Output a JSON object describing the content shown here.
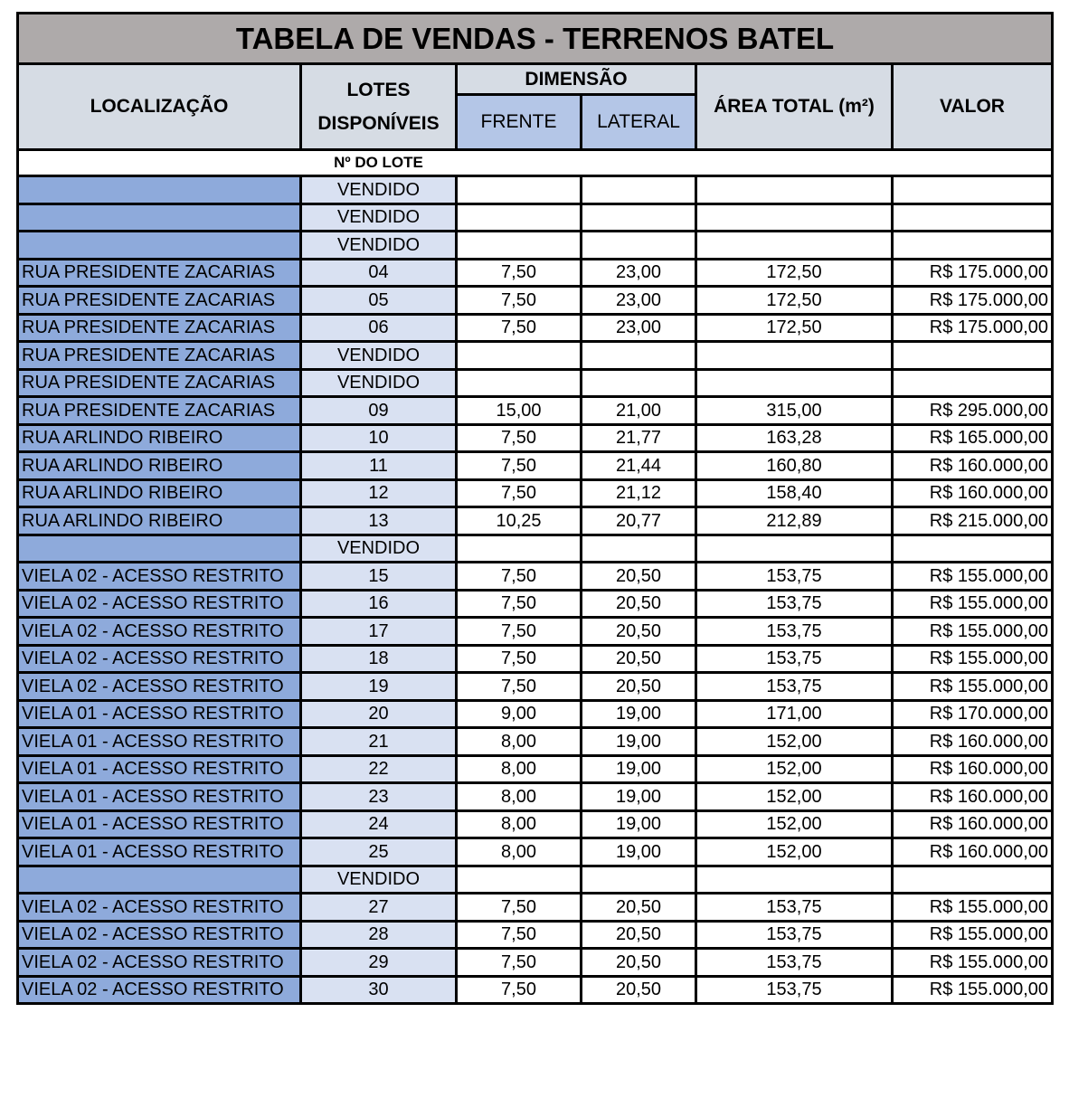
{
  "title": "TABELA DE VENDAS - TERRENOS BATEL",
  "headers": {
    "localizacao": "LOCALIZAÇÃO",
    "lotes": "LOTES DISPONÍVEIS",
    "dimensao": "DIMENSÃO",
    "frente": "FRENTE",
    "lateral": "LATERAL",
    "area": "ÁREA TOTAL (m²)",
    "valor": "VALOR"
  },
  "lote_label": "Nº DO LOTE",
  "colors": {
    "title_bg": "#aeaaaa",
    "header_bg": "#d6dce4",
    "subheader_bg": "#b4c6e7",
    "location_bg": "#8eaadb",
    "lote_bg": "#d9e1f2"
  },
  "rows": [
    {
      "loc": "",
      "lote": "VENDIDO",
      "frente": "",
      "lateral": "",
      "area": "",
      "valor": ""
    },
    {
      "loc": "",
      "lote": "VENDIDO",
      "frente": "",
      "lateral": "",
      "area": "",
      "valor": ""
    },
    {
      "loc": "",
      "lote": "VENDIDO",
      "frente": "",
      "lateral": "",
      "area": "",
      "valor": ""
    },
    {
      "loc": "RUA PRESIDENTE ZACARIAS",
      "lote": "04",
      "frente": "7,50",
      "lateral": "23,00",
      "area": "172,50",
      "valor": "R$ 175.000,00"
    },
    {
      "loc": "RUA PRESIDENTE ZACARIAS",
      "lote": "05",
      "frente": "7,50",
      "lateral": "23,00",
      "area": "172,50",
      "valor": "R$ 175.000,00"
    },
    {
      "loc": "RUA PRESIDENTE ZACARIAS",
      "lote": "06",
      "frente": "7,50",
      "lateral": "23,00",
      "area": "172,50",
      "valor": "R$ 175.000,00"
    },
    {
      "loc": "RUA PRESIDENTE ZACARIAS",
      "lote": "VENDIDO",
      "frente": "",
      "lateral": "",
      "area": "",
      "valor": ""
    },
    {
      "loc": "RUA PRESIDENTE ZACARIAS",
      "lote": "VENDIDO",
      "frente": "",
      "lateral": "",
      "area": "",
      "valor": ""
    },
    {
      "loc": "RUA PRESIDENTE ZACARIAS",
      "lote": "09",
      "frente": "15,00",
      "lateral": "21,00",
      "area": "315,00",
      "valor": "R$ 295.000,00"
    },
    {
      "loc": "RUA ARLINDO RIBEIRO",
      "lote": "10",
      "frente": "7,50",
      "lateral": "21,77",
      "area": "163,28",
      "valor": "R$ 165.000,00"
    },
    {
      "loc": "RUA ARLINDO RIBEIRO",
      "lote": "11",
      "frente": "7,50",
      "lateral": "21,44",
      "area": "160,80",
      "valor": "R$ 160.000,00"
    },
    {
      "loc": "RUA ARLINDO RIBEIRO",
      "lote": "12",
      "frente": "7,50",
      "lateral": "21,12",
      "area": "158,40",
      "valor": "R$ 160.000,00"
    },
    {
      "loc": "RUA ARLINDO RIBEIRO",
      "lote": "13",
      "frente": "10,25",
      "lateral": "20,77",
      "area": "212,89",
      "valor": "R$ 215.000,00"
    },
    {
      "loc": "",
      "lote": "VENDIDO",
      "frente": "",
      "lateral": "",
      "area": "",
      "valor": ""
    },
    {
      "loc": "VIELA 02 - ACESSO RESTRITO",
      "lote": "15",
      "frente": "7,50",
      "lateral": "20,50",
      "area": "153,75",
      "valor": "R$ 155.000,00"
    },
    {
      "loc": "VIELA 02 - ACESSO RESTRITO",
      "lote": "16",
      "frente": "7,50",
      "lateral": "20,50",
      "area": "153,75",
      "valor": "R$ 155.000,00"
    },
    {
      "loc": "VIELA 02 - ACESSO RESTRITO",
      "lote": "17",
      "frente": "7,50",
      "lateral": "20,50",
      "area": "153,75",
      "valor": "R$ 155.000,00"
    },
    {
      "loc": "VIELA 02 - ACESSO RESTRITO",
      "lote": "18",
      "frente": "7,50",
      "lateral": "20,50",
      "area": "153,75",
      "valor": "R$ 155.000,00"
    },
    {
      "loc": "VIELA 02 - ACESSO RESTRITO",
      "lote": "19",
      "frente": "7,50",
      "lateral": "20,50",
      "area": "153,75",
      "valor": "R$ 155.000,00"
    },
    {
      "loc": "VIELA 01 - ACESSO RESTRITO",
      "lote": "20",
      "frente": "9,00",
      "lateral": "19,00",
      "area": "171,00",
      "valor": "R$ 170.000,00"
    },
    {
      "loc": "VIELA 01 - ACESSO RESTRITO",
      "lote": "21",
      "frente": "8,00",
      "lateral": "19,00",
      "area": "152,00",
      "valor": "R$ 160.000,00"
    },
    {
      "loc": "VIELA 01 - ACESSO RESTRITO",
      "lote": "22",
      "frente": "8,00",
      "lateral": "19,00",
      "area": "152,00",
      "valor": "R$ 160.000,00"
    },
    {
      "loc": "VIELA 01 - ACESSO RESTRITO",
      "lote": "23",
      "frente": "8,00",
      "lateral": "19,00",
      "area": "152,00",
      "valor": "R$ 160.000,00"
    },
    {
      "loc": "VIELA 01 - ACESSO RESTRITO",
      "lote": "24",
      "frente": "8,00",
      "lateral": "19,00",
      "area": "152,00",
      "valor": "R$ 160.000,00"
    },
    {
      "loc": "VIELA 01 - ACESSO RESTRITO",
      "lote": "25",
      "frente": "8,00",
      "lateral": "19,00",
      "area": "152,00",
      "valor": "R$ 160.000,00"
    },
    {
      "loc": "",
      "lote": "VENDIDO",
      "frente": "",
      "lateral": "",
      "area": "",
      "valor": ""
    },
    {
      "loc": "VIELA 02 - ACESSO RESTRITO",
      "lote": "27",
      "frente": "7,50",
      "lateral": "20,50",
      "area": "153,75",
      "valor": "R$ 155.000,00"
    },
    {
      "loc": "VIELA 02 - ACESSO RESTRITO",
      "lote": "28",
      "frente": "7,50",
      "lateral": "20,50",
      "area": "153,75",
      "valor": "R$ 155.000,00"
    },
    {
      "loc": "VIELA 02 - ACESSO RESTRITO",
      "lote": "29",
      "frente": "7,50",
      "lateral": "20,50",
      "area": "153,75",
      "valor": "R$ 155.000,00"
    },
    {
      "loc": "VIELA 02 - ACESSO RESTRITO",
      "lote": "30",
      "frente": "7,50",
      "lateral": "20,50",
      "area": "153,75",
      "valor": "R$ 155.000,00"
    }
  ]
}
